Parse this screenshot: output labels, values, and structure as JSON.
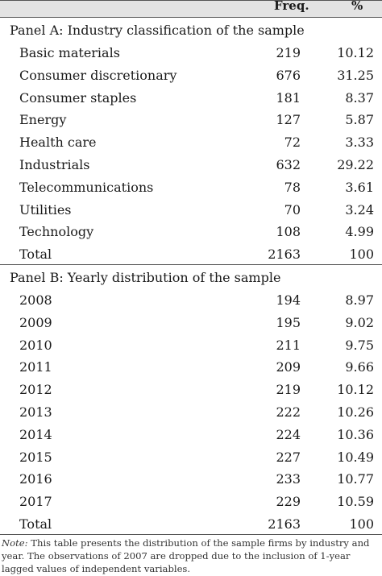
{
  "header": {
    "col_freq": "Freq.",
    "col_pct": "%"
  },
  "panel_a": {
    "title": "Panel A: Industry classification of the sample",
    "rows": [
      {
        "label": "Basic materials",
        "freq": "219",
        "pct": "10.12"
      },
      {
        "label": "Consumer discretionary",
        "freq": "676",
        "pct": "31.25"
      },
      {
        "label": "Consumer staples",
        "freq": "181",
        "pct": "8.37"
      },
      {
        "label": "Energy",
        "freq": "127",
        "pct": "5.87"
      },
      {
        "label": "Health care",
        "freq": "72",
        "pct": "3.33"
      },
      {
        "label": "Industrials",
        "freq": "632",
        "pct": "29.22"
      },
      {
        "label": "Telecommunications",
        "freq": "78",
        "pct": "3.61"
      },
      {
        "label": "Utilities",
        "freq": "70",
        "pct": "3.24"
      },
      {
        "label": "Technology",
        "freq": "108",
        "pct": "4.99"
      },
      {
        "label": "Total",
        "freq": "2163",
        "pct": "100"
      }
    ]
  },
  "panel_b": {
    "title": "Panel B: Yearly distribution of the sample",
    "rows": [
      {
        "label": "2008",
        "freq": "194",
        "pct": "8.97"
      },
      {
        "label": "2009",
        "freq": "195",
        "pct": "9.02"
      },
      {
        "label": "2010",
        "freq": "211",
        "pct": "9.75"
      },
      {
        "label": "2011",
        "freq": "209",
        "pct": "9.66"
      },
      {
        "label": "2012",
        "freq": "219",
        "pct": "10.12"
      },
      {
        "label": "2013",
        "freq": "222",
        "pct": "10.26"
      },
      {
        "label": "2014",
        "freq": "224",
        "pct": "10.36"
      },
      {
        "label": "2015",
        "freq": "227",
        "pct": "10.49"
      },
      {
        "label": "2016",
        "freq": "233",
        "pct": "10.77"
      },
      {
        "label": "2017",
        "freq": "229",
        "pct": "10.59"
      },
      {
        "label": "Total",
        "freq": "2163",
        "pct": "100"
      }
    ]
  },
  "note": {
    "prefix": "Note:",
    "text": " This table presents the distribution of the sample firms by industry and year. The observations of 2007 are dropped due to the inclusion of 1-year lagged values of independent variables."
  }
}
